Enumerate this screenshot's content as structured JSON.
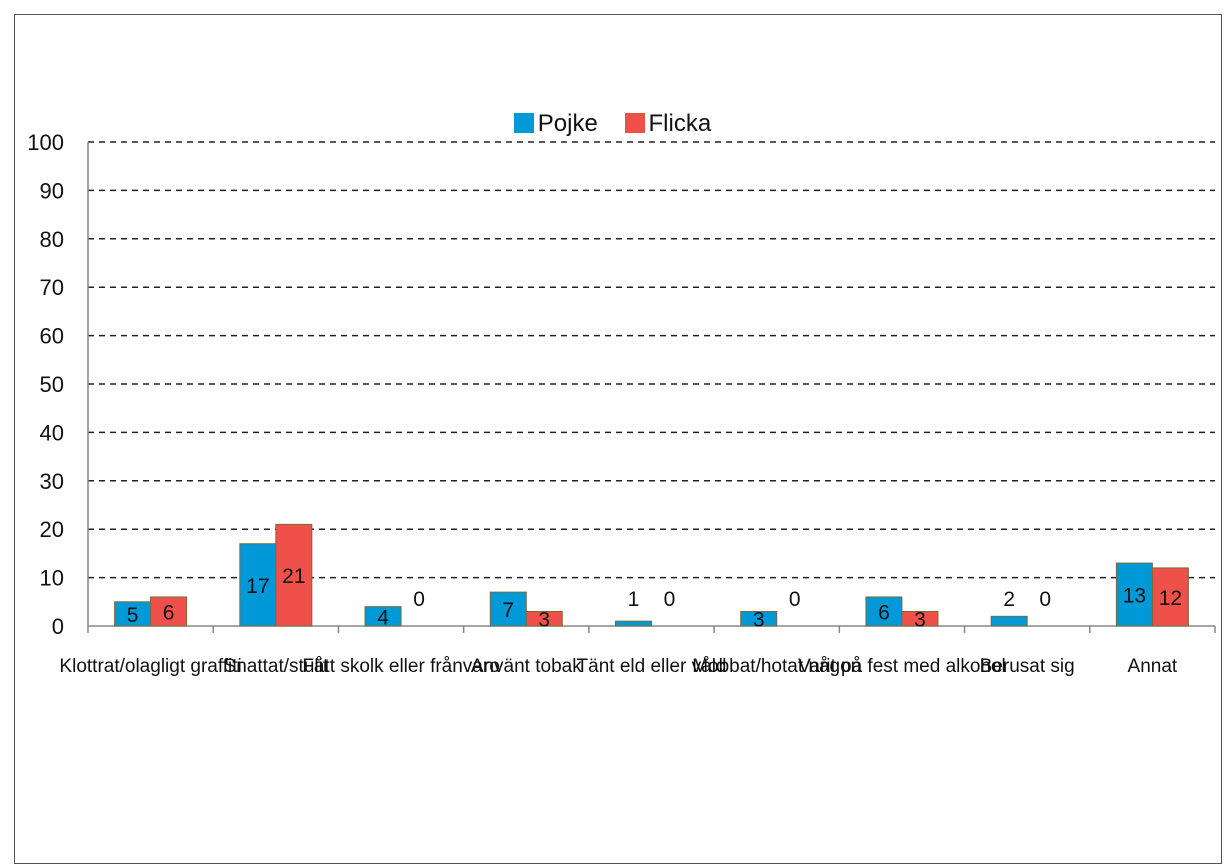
{
  "chart_data": {
    "type": "bar",
    "title": "",
    "xlabel": "",
    "ylabel": "",
    "ylim": [
      0,
      100
    ],
    "yticks": [
      0,
      10,
      20,
      30,
      40,
      50,
      60,
      70,
      80,
      90,
      100
    ],
    "grid": "horizontal-dashed",
    "legend_position": "top",
    "categories": [
      "Klottrat/olagligt graffiti",
      "Snattat/stulit",
      "Fått skolk eller frånvaro",
      "Använt tobak",
      "Tänt eld eller våld",
      "Mobbat/hotat någon",
      "Varit på fest med alkohol",
      "Berusat sig",
      "Annat"
    ],
    "series": [
      {
        "name": "Pojke",
        "color": "#0099d8",
        "values": [
          5,
          17,
          4,
          7,
          1,
          3,
          6,
          2,
          13
        ]
      },
      {
        "name": "Flicka",
        "color": "#f0504a",
        "values": [
          6,
          21,
          0,
          3,
          0,
          0,
          3,
          0,
          12
        ]
      }
    ]
  }
}
